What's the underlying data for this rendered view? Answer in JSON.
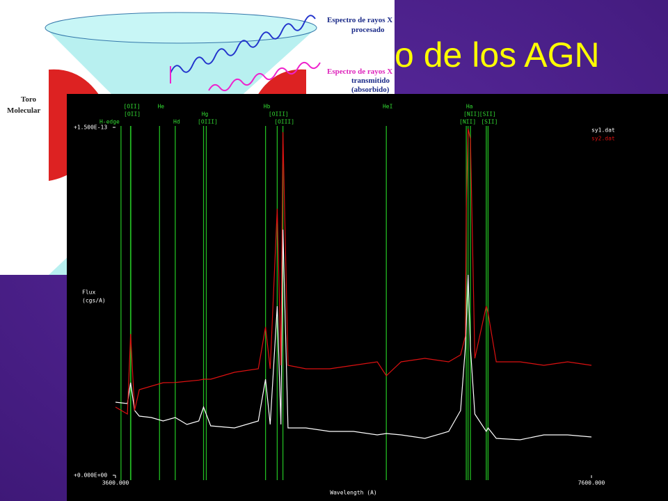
{
  "slide_title": "o de los AGN",
  "diagram": {
    "processed_label": [
      "Espectro de rayos X",
      "procesado"
    ],
    "transmitted_label": [
      "Espectro de rayos X",
      "transmitido",
      "(absorbido)"
    ],
    "torus_label": [
      "Toro",
      "Molecular"
    ]
  },
  "chart_data": {
    "type": "line",
    "x_label": "Wavelength (A)",
    "y_label": [
      "Flux",
      "(cgs/A)"
    ],
    "xlim": [
      3600,
      7600
    ],
    "ylim": [
      0,
      1.5e-13
    ],
    "xticks": [
      {
        "value": 3600,
        "label": "3600.000"
      },
      {
        "value": 7600,
        "label": "7600.000"
      }
    ],
    "yticks": [
      {
        "value": 0,
        "label": "+0.000E+00"
      },
      {
        "value": 1.5e-13,
        "label": "+1.500E-13"
      }
    ],
    "x": [
      3600,
      3700,
      3727,
      3760,
      3800,
      3900,
      4000,
      4102,
      4200,
      4300,
      4340,
      4400,
      4600,
      4800,
      4861,
      4900,
      4959,
      4990,
      5007,
      5050,
      5200,
      5400,
      5600,
      5800,
      5876,
      6000,
      6200,
      6400,
      6500,
      6540,
      6548,
      6563,
      6583,
      6620,
      6716,
      6731,
      6800,
      7000,
      7200,
      7400,
      7600
    ],
    "series": [
      {
        "name": "sy1.dat",
        "color": "#ffffff",
        "values": [
          3.15e-14,
          3.09e-14,
          3.99e-14,
          2.8e-14,
          2.55e-14,
          2.49e-14,
          2.34e-14,
          2.49e-14,
          2.19e-14,
          2.34e-14,
          2.94e-14,
          2.13e-14,
          2.04e-14,
          2.34e-14,
          4.14e-14,
          2.19e-14,
          7.29e-14,
          2.19e-14,
          1.059e-13,
          2.04e-14,
          2.04e-14,
          1.89e-14,
          1.89e-14,
          1.74e-14,
          1.8e-14,
          1.74e-14,
          1.59e-14,
          1.89e-14,
          2.79e-14,
          5.49e-14,
          6.5e-14,
          8.64e-14,
          5.49e-14,
          2.64e-14,
          1.89e-14,
          2.04e-14,
          1.59e-14,
          1.53e-14,
          1.74e-14,
          1.74e-14,
          1.65e-14
        ]
      },
      {
        "name": "sy2.dat",
        "color": "#dd1111",
        "values": [
          2.94e-14,
          2.64e-14,
          6.09e-14,
          2.79e-14,
          3.69e-14,
          3.84e-14,
          3.99e-14,
          4e-14,
          4.05e-14,
          4.1e-14,
          4.14e-14,
          4.14e-14,
          4.44e-14,
          4.59e-14,
          6.39e-14,
          4.59e-14,
          1.149e-13,
          4.74e-14,
          1.479e-13,
          4.74e-14,
          4.59e-14,
          4.59e-14,
          4.74e-14,
          4.89e-14,
          4.29e-14,
          4.89e-14,
          5.04e-14,
          4.89e-14,
          5.19e-14,
          6e-14,
          1.149e-13,
          1.494e-13,
          1.449e-13,
          5.04e-14,
          7.29e-14,
          6.99e-14,
          4.89e-14,
          4.89e-14,
          4.74e-14,
          4.89e-14,
          4.74e-14
        ]
      }
    ],
    "line_color": "#22bb22",
    "emission_lines": [
      {
        "label": "H-edge",
        "wavelength": 3646
      },
      {
        "label": "[OII]",
        "wavelength": 3726
      },
      {
        "label": "[OII]",
        "wavelength": 3729
      },
      {
        "label": "He",
        "wavelength": 3970
      },
      {
        "label": "Hd",
        "wavelength": 4102
      },
      {
        "label": "Hg",
        "wavelength": 4340
      },
      {
        "label": "[OIII]",
        "wavelength": 4363
      },
      {
        "label": "Hb",
        "wavelength": 4861
      },
      {
        "label": "[OIII]",
        "wavelength": 4959
      },
      {
        "label": "[OIII]",
        "wavelength": 5007
      },
      {
        "label": "HeI",
        "wavelength": 5876
      },
      {
        "label": "[NII]",
        "wavelength": 6548
      },
      {
        "label": "Ha",
        "wavelength": 6563
      },
      {
        "label": "[NII]",
        "wavelength": 6583
      },
      {
        "label": "[SII]",
        "wavelength": 6716
      },
      {
        "label": "[SII]",
        "wavelength": 6731
      }
    ]
  }
}
